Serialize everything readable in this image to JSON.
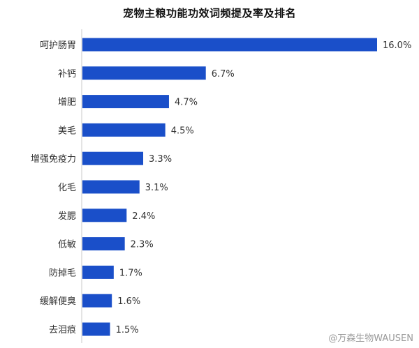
{
  "chart_data": {
    "type": "bar",
    "orientation": "horizontal",
    "title": "宠物主粮功能功效词频提及率及排名",
    "categories": [
      "呵护肠胃",
      "补钙",
      "增肥",
      "美毛",
      "增强免疫力",
      "化毛",
      "发腮",
      "低敏",
      "防掉毛",
      "缓解便臭",
      "去泪痕"
    ],
    "values": [
      16.0,
      6.7,
      4.7,
      4.5,
      3.3,
      3.1,
      2.4,
      2.3,
      1.7,
      1.6,
      1.5
    ],
    "value_labels": [
      "16.0%",
      "6.7%",
      "4.7%",
      "4.5%",
      "3.3%",
      "3.1%",
      "2.4%",
      "2.3%",
      "1.7%",
      "1.6%",
      "1.5%"
    ],
    "xlim": [
      0,
      16.0
    ],
    "grid": false,
    "bar_color": "#1a4fc9"
  },
  "watermark": "@万森生物WAUSEN"
}
